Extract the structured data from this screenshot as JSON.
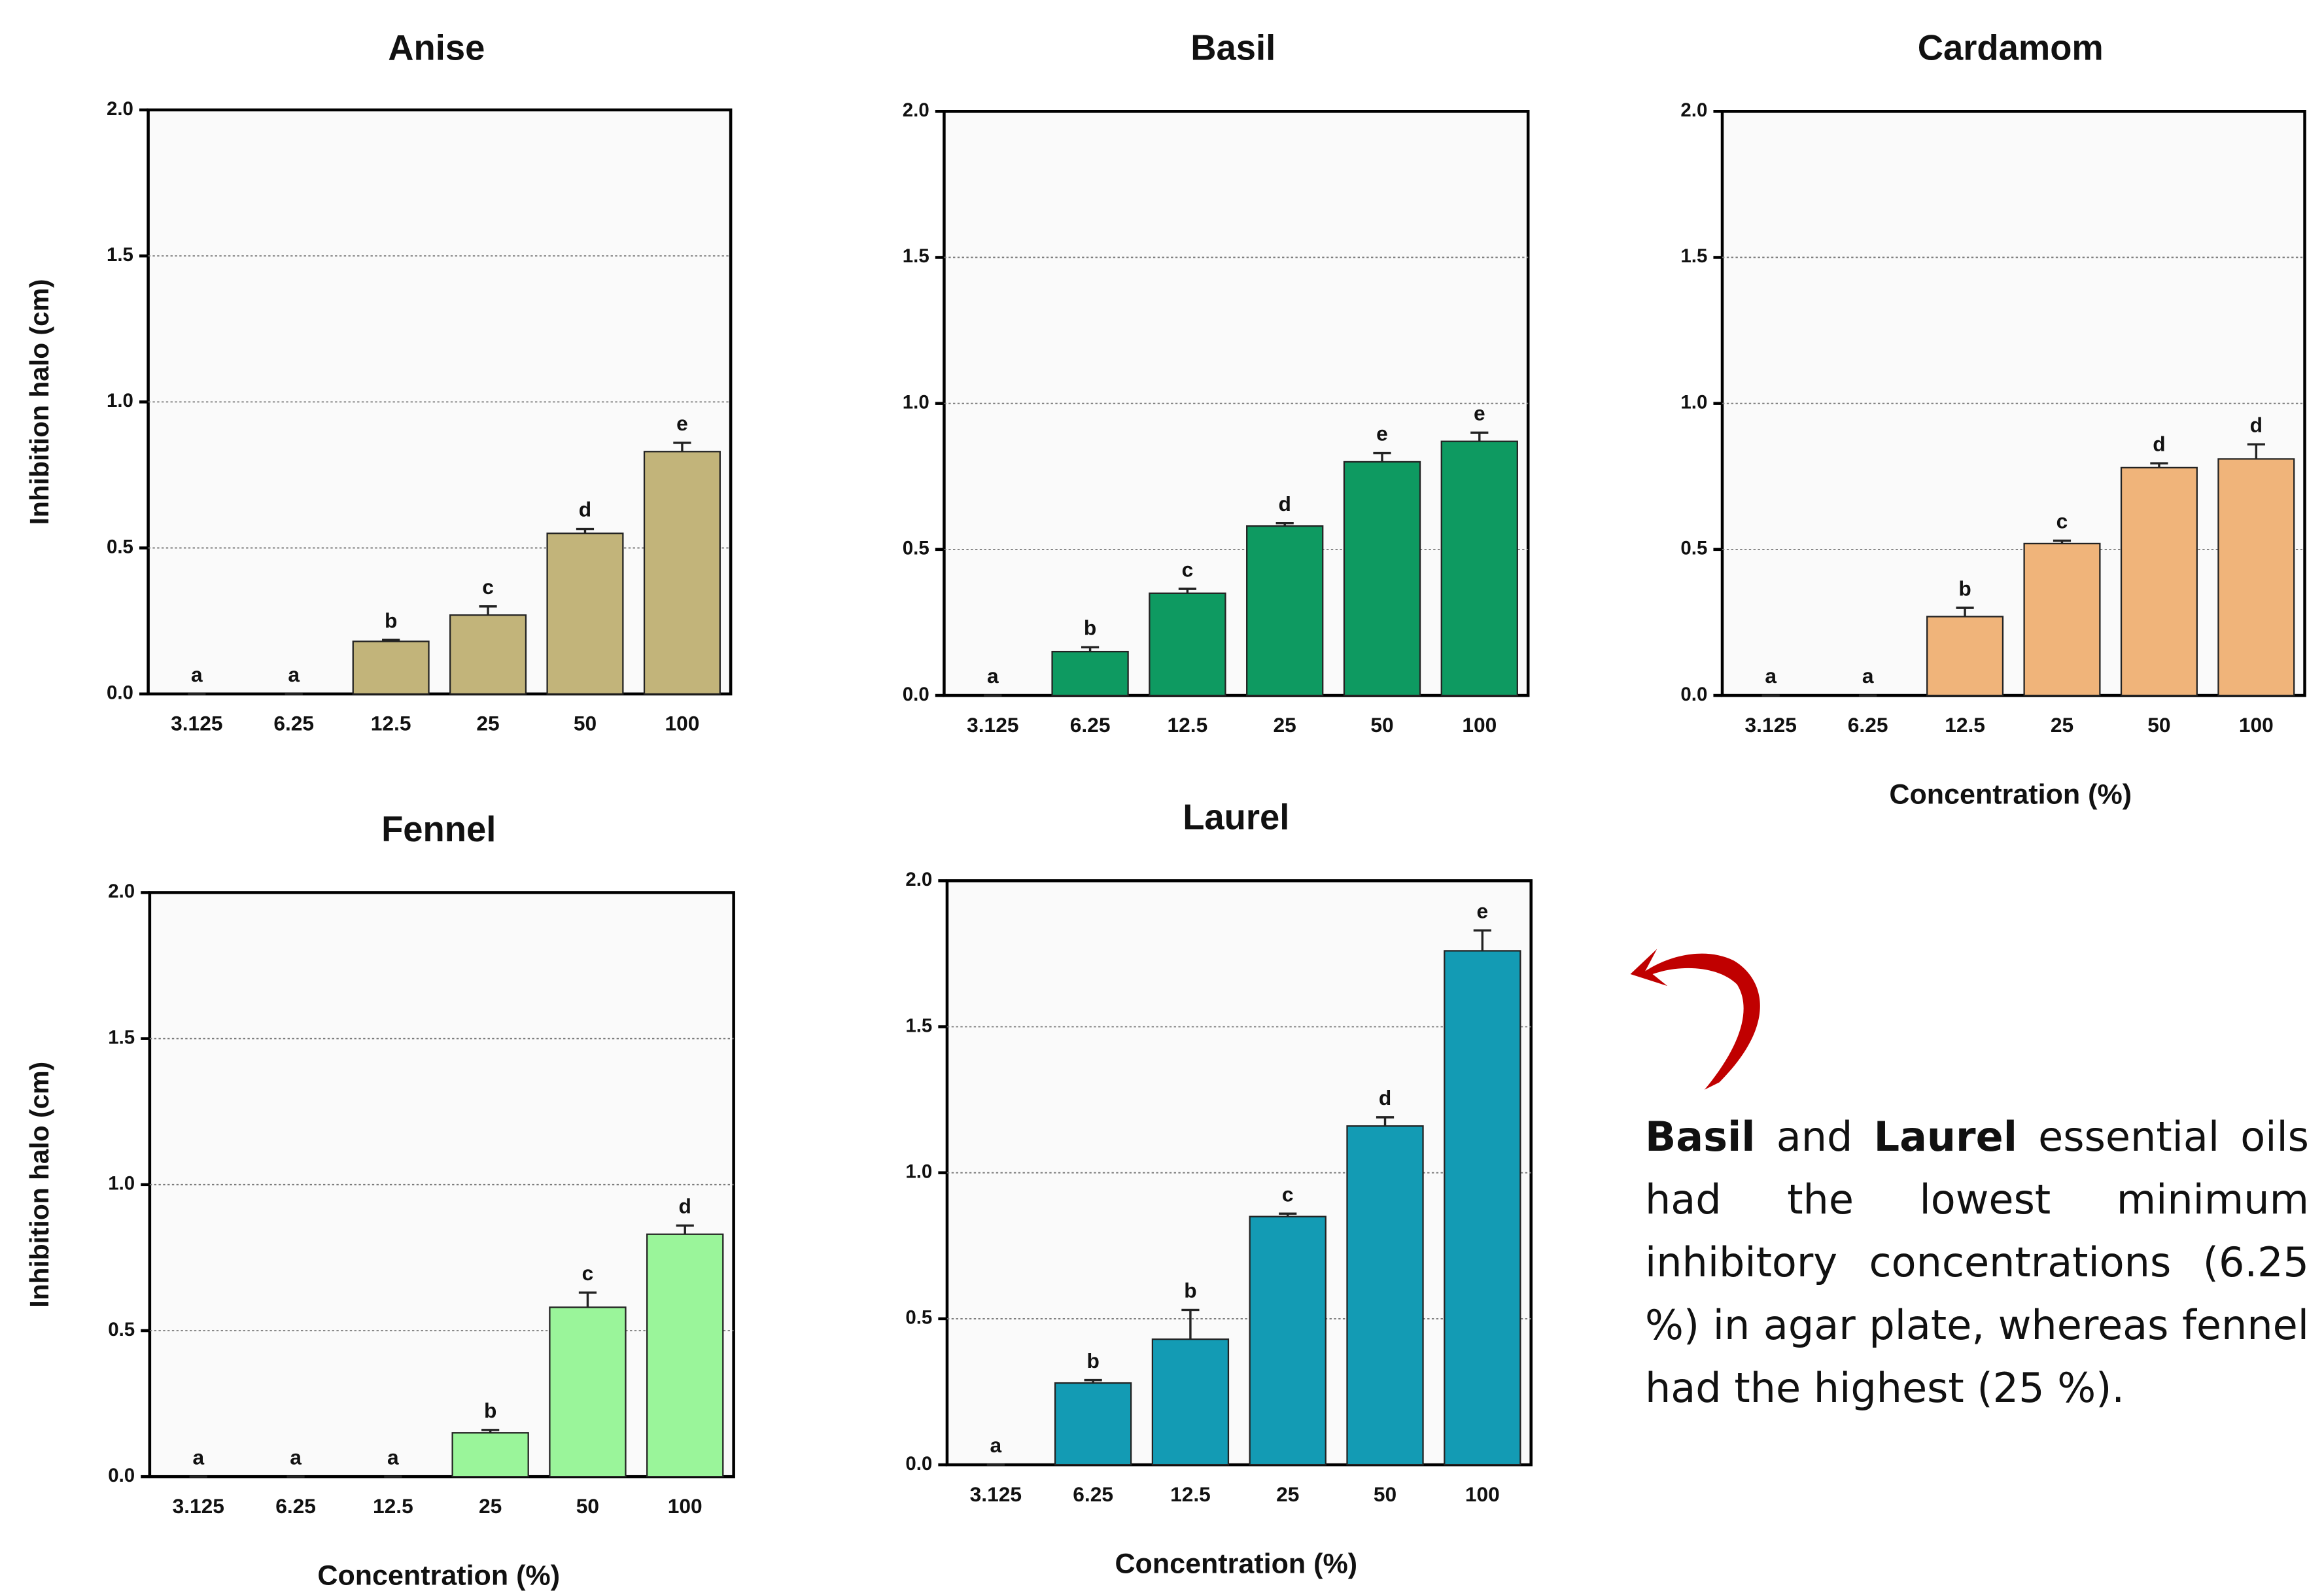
{
  "chart_data": [
    {
      "type": "bar",
      "title": "Anise",
      "ylabel": "Inhibition halo (cm)",
      "color": "#c2b47a",
      "categories": [
        "3.125",
        "6.25",
        "12.5",
        "25",
        "50",
        "100"
      ],
      "values": [
        0,
        0,
        0.18,
        0.27,
        0.55,
        0.83
      ],
      "errors": [
        0,
        0,
        0.005,
        0.03,
        0.015,
        0.03
      ],
      "letters": [
        "a",
        "a",
        "b",
        "c",
        "d",
        "e"
      ],
      "ylim": [
        0,
        2
      ],
      "yticks": [
        {
          "value": 0,
          "label": "0.0"
        },
        {
          "value": 0.5,
          "label": "0.5"
        },
        {
          "value": 1,
          "label": "1.0"
        },
        {
          "value": 1.5,
          "label": "1.5"
        },
        {
          "value": 2,
          "label": "2.0"
        }
      ],
      "grid": true
    },
    {
      "type": "bar",
      "title": "Basil",
      "color": "#0e9a61",
      "categories": [
        "3.125",
        "6.25",
        "12.5",
        "25",
        "50",
        "100"
      ],
      "values": [
        0,
        0.15,
        0.35,
        0.58,
        0.8,
        0.87
      ],
      "errors": [
        0,
        0.015,
        0.015,
        0.01,
        0.03,
        0.03
      ],
      "letters": [
        "a",
        "b",
        "c",
        "d",
        "e",
        "e"
      ],
      "ylim": [
        0,
        2
      ],
      "yticks": [
        {
          "value": 0,
          "label": "0.0"
        },
        {
          "value": 0.5,
          "label": "0.5"
        },
        {
          "value": 1,
          "label": "1.0"
        },
        {
          "value": 1.5,
          "label": "1.5"
        },
        {
          "value": 2,
          "label": "2.0"
        }
      ],
      "grid": true
    },
    {
      "type": "bar",
      "title": "Cardamom",
      "xlabel": "Concentration (%)",
      "color": "#f0b47a",
      "categories": [
        "3.125",
        "6.25",
        "12.5",
        "25",
        "50",
        "100"
      ],
      "values": [
        0,
        0,
        0.27,
        0.52,
        0.78,
        0.81
      ],
      "errors": [
        0,
        0,
        0.03,
        0.01,
        0.015,
        0.05
      ],
      "letters": [
        "a",
        "a",
        "b",
        "c",
        "d",
        "d"
      ],
      "ylim": [
        0,
        2
      ],
      "yticks": [
        {
          "value": 0,
          "label": "0.0"
        },
        {
          "value": 0.5,
          "label": "0.5"
        },
        {
          "value": 1,
          "label": "1.0"
        },
        {
          "value": 1.5,
          "label": "1.5"
        },
        {
          "value": 2,
          "label": "2.0"
        }
      ],
      "grid": true
    },
    {
      "type": "bar",
      "title": "Fennel",
      "ylabel": "Inhibition halo (cm)",
      "xlabel": "Concentration (%)",
      "color": "#9af59a",
      "categories": [
        "3.125",
        "6.25",
        "12.5",
        "25",
        "50",
        "100"
      ],
      "values": [
        0,
        0,
        0,
        0.15,
        0.58,
        0.83
      ],
      "errors": [
        0,
        0,
        0,
        0.01,
        0.05,
        0.03
      ],
      "letters": [
        "a",
        "a",
        "a",
        "b",
        "c",
        "d"
      ],
      "ylim": [
        0,
        2
      ],
      "yticks": [
        {
          "value": 0,
          "label": "0.0"
        },
        {
          "value": 0.5,
          "label": "0.5"
        },
        {
          "value": 1,
          "label": "1.0"
        },
        {
          "value": 1.5,
          "label": "1.5"
        },
        {
          "value": 2,
          "label": "2.0"
        }
      ],
      "grid": true
    },
    {
      "type": "bar",
      "title": "Laurel",
      "xlabel": "Concentration (%)",
      "color": "#139bb4",
      "categories": [
        "3.125",
        "6.25",
        "12.5",
        "25",
        "50",
        "100"
      ],
      "values": [
        0,
        0.28,
        0.43,
        0.85,
        1.16,
        1.76
      ],
      "errors": [
        0,
        0.01,
        0.1,
        0.01,
        0.03,
        0.07
      ],
      "letters": [
        "a",
        "b",
        "b",
        "c",
        "d",
        "e"
      ],
      "ylim": [
        0,
        2
      ],
      "yticks": [
        {
          "value": 0,
          "label": "0.0"
        },
        {
          "value": 0.5,
          "label": "0.5"
        },
        {
          "value": 1,
          "label": "1.0"
        },
        {
          "value": 1.5,
          "label": "1.5"
        },
        {
          "value": 2,
          "label": "2.0"
        }
      ],
      "grid": true
    }
  ],
  "note": {
    "bold1": "Basil",
    "text1": "and",
    "bold2": "Laurel",
    "text2": "essential oils had the lowest minimum inhibitory concentrations (6.25 %) in agar plate, whereas fennel had the highest (25 %)."
  }
}
